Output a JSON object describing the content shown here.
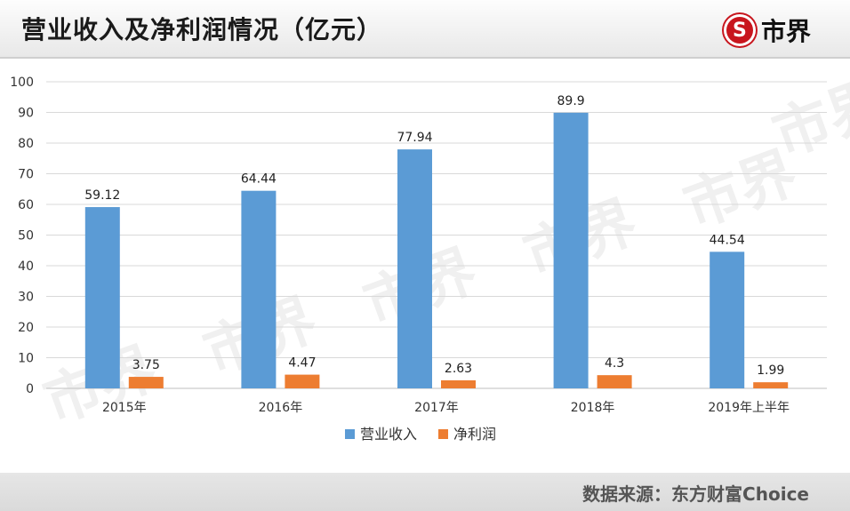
{
  "header": {
    "title": "营业收入及净利润情况（亿元）",
    "brand_logo_glyph": "S",
    "brand_name": "市界"
  },
  "watermark_text": "市界",
  "footer": {
    "source": "数据来源：东方财富Choice"
  },
  "colors": {
    "revenue": "#5b9bd5",
    "profit": "#ed7d31",
    "brand_red": "#c8161e"
  },
  "chart_data": {
    "type": "bar",
    "categories": [
      "2015年",
      "2016年",
      "2017年",
      "2018年",
      "2019年上半年"
    ],
    "series": [
      {
        "name": "营业收入",
        "values": [
          59.12,
          64.44,
          77.94,
          89.9,
          44.54
        ],
        "labels": [
          "59.12",
          "64.44",
          "77.94",
          "89.9",
          "44.54"
        ]
      },
      {
        "name": "净利润",
        "values": [
          3.75,
          4.47,
          2.63,
          4.3,
          1.99
        ],
        "labels": [
          "3.75",
          "4.47",
          "2.63",
          "4.3",
          "1.99"
        ]
      }
    ],
    "ylim": [
      0,
      100
    ],
    "yticks": [
      0,
      10,
      20,
      30,
      40,
      50,
      60,
      70,
      80,
      90,
      100
    ],
    "grid": true,
    "legend": "bottom"
  }
}
